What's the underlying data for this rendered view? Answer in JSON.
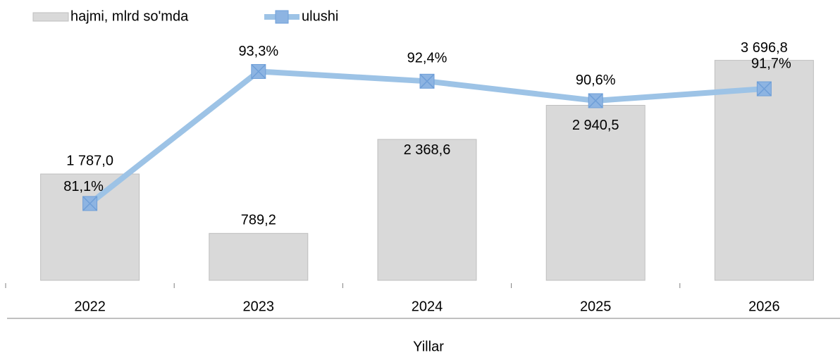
{
  "chart_data": {
    "type": "bar_line",
    "categories": [
      "2022",
      "2023",
      "2024",
      "2025",
      "2026"
    ],
    "x_label": "Yillar",
    "series": [
      {
        "name": "hajmi, mlrd so'mda",
        "type": "bar",
        "color": "#d9d9d9",
        "border": "#bfbfbf",
        "values": [
          1787.0,
          789.2,
          2368.6,
          2940.5,
          3696.8
        ],
        "value_labels": [
          "1 787,0",
          "789,2",
          "2 368,6",
          "2 940,5",
          "3 696,8"
        ]
      },
      {
        "name": "ulushi",
        "type": "line",
        "axis": "y2",
        "color": "#9dc3e6",
        "marker_color": "#8db4e2",
        "values": [
          81.1,
          93.3,
          92.4,
          90.6,
          91.7
        ],
        "value_labels": [
          "81,1%",
          "93,3%",
          "92,4%",
          "90,6%",
          "91,7%"
        ]
      }
    ],
    "ylim": [
      0,
      4000
    ],
    "y2lim": [
      74,
      96
    ],
    "legend": "top-left"
  }
}
